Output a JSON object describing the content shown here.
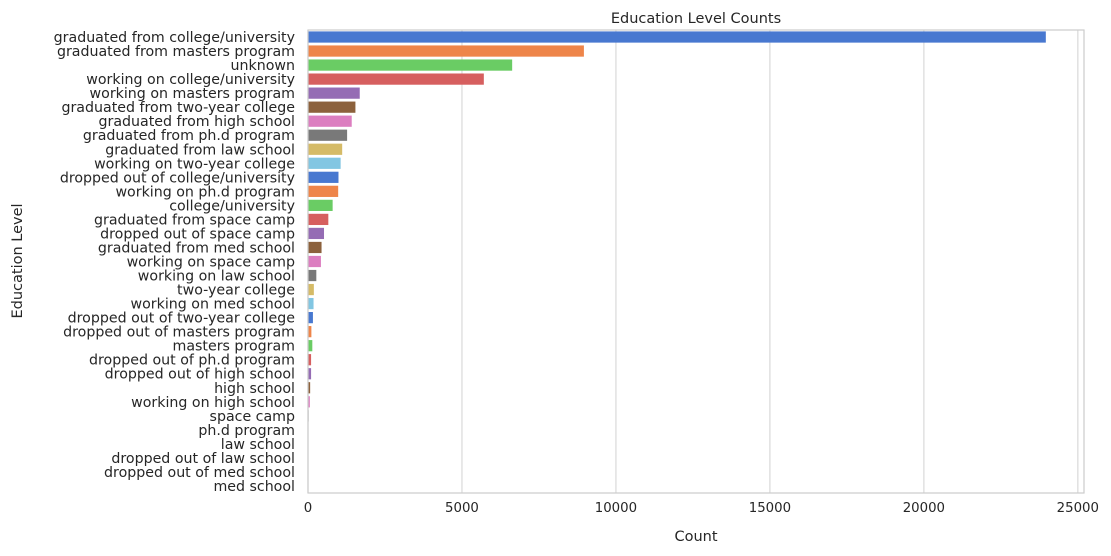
{
  "chart_data": {
    "type": "bar",
    "orientation": "horizontal",
    "title": "Education Level Counts",
    "xlabel": "Count",
    "ylabel": "Education Level",
    "xlim": [
      0,
      25200
    ],
    "xticks": [
      0,
      5000,
      10000,
      15000,
      20000,
      25000
    ],
    "grid": "vertical",
    "palette": [
      "#4878d0",
      "#ee854a",
      "#6acc64",
      "#d65f5f",
      "#956cb4",
      "#8c613c",
      "#dc7ec0",
      "#797979",
      "#d5bb67",
      "#82c6e2"
    ],
    "categories": [
      "graduated from college/university",
      "graduated from masters program",
      "unknown",
      "working on college/university",
      "working on masters program",
      "graduated from two-year college",
      "graduated from high school",
      "graduated from ph.d program",
      "graduated from law school",
      "working on two-year college",
      "dropped out of college/university",
      "working on ph.d program",
      "college/university",
      "graduated from space camp",
      "dropped out of space camp",
      "graduated from med school",
      "working on space camp",
      "working on law school",
      "two-year college",
      "working on med school",
      "dropped out of two-year college",
      "dropped out of masters program",
      "masters program",
      "dropped out of ph.d program",
      "dropped out of high school",
      "high school",
      "working on high school",
      "space camp",
      "ph.d program",
      "law school",
      "dropped out of law school",
      "dropped out of med school",
      "med school"
    ],
    "values": [
      23960,
      8960,
      6630,
      5710,
      1680,
      1540,
      1420,
      1270,
      1110,
      1060,
      990,
      980,
      800,
      660,
      520,
      440,
      420,
      270,
      190,
      180,
      160,
      110,
      140,
      100,
      100,
      70,
      60,
      20,
      10,
      10,
      10,
      10,
      5
    ]
  }
}
